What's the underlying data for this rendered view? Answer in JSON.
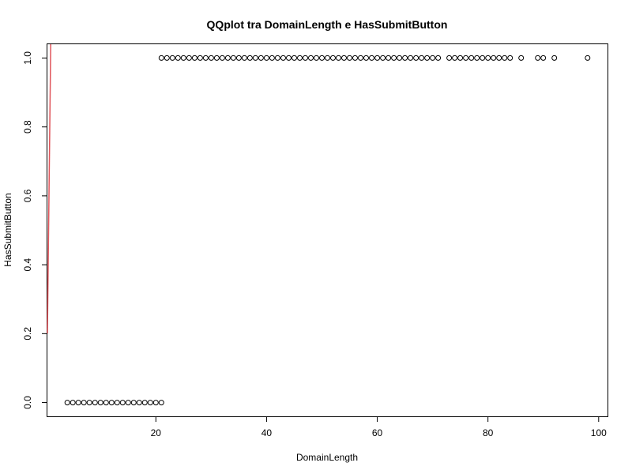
{
  "chart_data": {
    "type": "scatter",
    "title": "QQplot tra DomainLength e HasSubmitButton",
    "xlabel": "DomainLength",
    "ylabel": "HasSubmitButton",
    "xlim": [
      0.4,
      101.6
    ],
    "ylim": [
      -0.04,
      1.04
    ],
    "x_ticks": [
      20,
      40,
      60,
      80,
      100
    ],
    "y_ticks": [
      0.0,
      0.2,
      0.4,
      0.6,
      0.8,
      1.0
    ],
    "x_tick_labels": [
      "20",
      "40",
      "60",
      "80",
      "100"
    ],
    "y_tick_labels": [
      "0.0",
      "0.2",
      "0.4",
      "0.6",
      "0.8",
      "1.0"
    ],
    "grid": false,
    "legend": "none",
    "point_color": "#000000",
    "line_color": "#e0545a",
    "points": {
      "y0_x": [
        4,
        5,
        6,
        7,
        8,
        9,
        10,
        11,
        12,
        13,
        14,
        15,
        16,
        17,
        18,
        19,
        20,
        21
      ],
      "y1_x": [
        21,
        22,
        23,
        24,
        25,
        26,
        27,
        28,
        29,
        30,
        31,
        32,
        33,
        34,
        35,
        36,
        37,
        38,
        39,
        40,
        41,
        42,
        43,
        44,
        45,
        46,
        47,
        48,
        49,
        50,
        51,
        52,
        53,
        54,
        55,
        56,
        57,
        58,
        59,
        60,
        61,
        62,
        63,
        64,
        65,
        66,
        67,
        68,
        69,
        70,
        71,
        73,
        74,
        75,
        76,
        77,
        78,
        79,
        80,
        81,
        82,
        83,
        84,
        86,
        89,
        90,
        92,
        98
      ]
    },
    "reference_line": {
      "x": [
        0.4,
        1.0
      ],
      "y": [
        0.2,
        1.04
      ]
    }
  }
}
